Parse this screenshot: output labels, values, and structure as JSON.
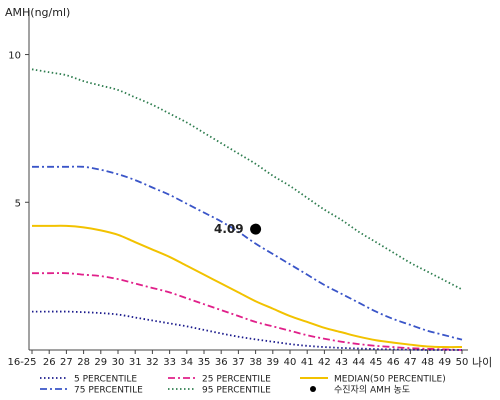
{
  "chart_data": {
    "type": "line",
    "ylabel": "AMH(ng/ml)",
    "xlabel": "나이",
    "x_ticks": [
      "16-25",
      "26",
      "27",
      "28",
      "29",
      "30",
      "31",
      "32",
      "33",
      "34",
      "35",
      "36",
      "37",
      "38",
      "39",
      "40",
      "41",
      "42",
      "43",
      "44",
      "45",
      "46",
      "47",
      "48",
      "49",
      "50"
    ],
    "y_ticks": [
      5,
      10
    ],
    "ylim": [
      0,
      11
    ],
    "grid": false,
    "legend_position": "bottom",
    "series": [
      {
        "name": "95 PERCENTILE",
        "color": "#2e7d4f",
        "style": "dotted",
        "values": [
          9.5,
          9.4,
          9.3,
          9.1,
          8.95,
          8.8,
          8.55,
          8.3,
          8.0,
          7.7,
          7.35,
          7.0,
          6.65,
          6.3,
          5.9,
          5.55,
          5.15,
          4.75,
          4.4,
          4.0,
          3.65,
          3.3,
          2.95,
          2.65,
          2.35,
          2.05
        ]
      },
      {
        "name": "75 PERCENTILE",
        "color": "#3a55c8",
        "style": "dashdot",
        "values": [
          6.2,
          6.2,
          6.2,
          6.2,
          6.1,
          5.95,
          5.75,
          5.5,
          5.25,
          4.95,
          4.65,
          4.35,
          4.0,
          3.6,
          3.25,
          2.9,
          2.55,
          2.2,
          1.9,
          1.6,
          1.3,
          1.05,
          0.85,
          0.65,
          0.5,
          0.35
        ]
      },
      {
        "name": "MEDIAN(50 PERCENTILE)",
        "color": "#f2c200",
        "style": "solid",
        "values": [
          4.2,
          4.2,
          4.2,
          4.15,
          4.05,
          3.9,
          3.65,
          3.4,
          3.15,
          2.85,
          2.55,
          2.25,
          1.95,
          1.65,
          1.4,
          1.15,
          0.95,
          0.75,
          0.6,
          0.45,
          0.33,
          0.25,
          0.18,
          0.12,
          0.1,
          0.1
        ]
      },
      {
        "name": "25 PERCENTILE",
        "color": "#e0208a",
        "style": "dashdot",
        "values": [
          2.6,
          2.6,
          2.6,
          2.55,
          2.5,
          2.4,
          2.25,
          2.1,
          1.95,
          1.75,
          1.55,
          1.35,
          1.15,
          0.95,
          0.8,
          0.65,
          0.5,
          0.38,
          0.28,
          0.2,
          0.14,
          0.1,
          0.06,
          0.04,
          0.02,
          0.0
        ]
      },
      {
        "name": "5 PERCENTILE",
        "color": "#1a1a8c",
        "style": "dotted",
        "values": [
          1.3,
          1.3,
          1.3,
          1.28,
          1.25,
          1.2,
          1.1,
          1.0,
          0.9,
          0.8,
          0.68,
          0.56,
          0.45,
          0.36,
          0.28,
          0.2,
          0.14,
          0.1,
          0.07,
          0.05,
          0.03,
          0.02,
          0.01,
          0.0,
          0.0,
          0.0
        ]
      }
    ],
    "highlight_point": {
      "name": "수진자의 AMH 농도",
      "x": "38",
      "y": 4.09,
      "label": "4.09",
      "color": "#000000"
    },
    "legend": [
      {
        "label": "5 PERCENTILE",
        "series": 4
      },
      {
        "label": "25 PERCENTILE",
        "series": 3
      },
      {
        "label": "MEDIAN(50 PERCENTILE)",
        "series": 2
      },
      {
        "label": "75 PERCENTILE",
        "series": 1
      },
      {
        "label": "95 PERCENTILE",
        "series": 0
      },
      {
        "label": "수진자의 AMH 농도",
        "marker": "dot"
      }
    ]
  }
}
